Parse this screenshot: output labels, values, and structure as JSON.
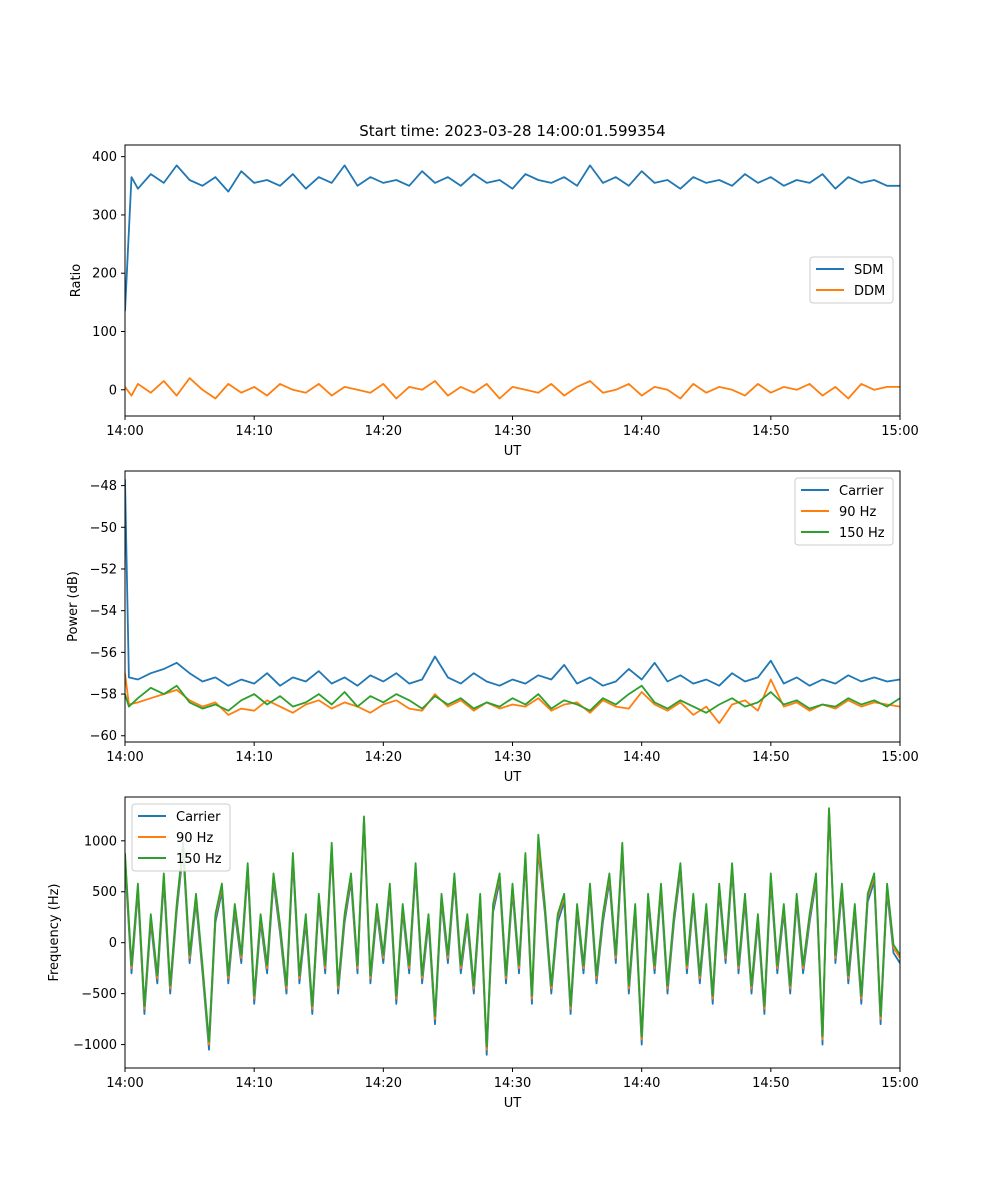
{
  "figure": {
    "title": "Start time: 2023-03-28 14:00:01.599354"
  },
  "chart_data": [
    {
      "type": "line",
      "title": "Start time: 2023-03-28 14:00:01.599354",
      "xlabel": "UT",
      "ylabel": "Ratio",
      "x_range": [
        "14:00",
        "15:00"
      ],
      "xticks": [
        "14:00",
        "14:10",
        "14:20",
        "14:30",
        "14:40",
        "14:50",
        "15:00"
      ],
      "yticks": [
        0,
        100,
        200,
        300,
        400
      ],
      "ylim": [
        -45,
        420
      ],
      "legend_position": "center-right",
      "x_minutes": [
        0,
        0.5,
        1,
        2,
        3,
        4,
        5,
        6,
        7,
        8,
        9,
        10,
        11,
        12,
        13,
        14,
        15,
        16,
        17,
        18,
        19,
        20,
        21,
        22,
        23,
        24,
        25,
        26,
        27,
        28,
        29,
        30,
        31,
        32,
        33,
        34,
        35,
        36,
        37,
        38,
        39,
        40,
        41,
        42,
        43,
        44,
        45,
        46,
        47,
        48,
        49,
        50,
        51,
        52,
        53,
        54,
        55,
        56,
        57,
        58,
        59,
        60
      ],
      "series": [
        {
          "name": "SDM",
          "color": "#1f77b4",
          "values": [
            135,
            365,
            345,
            370,
            355,
            385,
            360,
            350,
            365,
            340,
            375,
            355,
            360,
            350,
            370,
            345,
            365,
            355,
            385,
            350,
            365,
            355,
            360,
            350,
            375,
            355,
            365,
            350,
            370,
            355,
            360,
            345,
            370,
            360,
            355,
            365,
            350,
            385,
            355,
            365,
            350,
            375,
            355,
            360,
            345,
            365,
            355,
            360,
            350,
            370,
            355,
            365,
            350,
            360,
            355,
            370,
            345,
            365,
            355,
            360,
            350,
            350
          ]
        },
        {
          "name": "DDM",
          "color": "#ff7f0e",
          "values": [
            5,
            -10,
            10,
            -5,
            15,
            -10,
            20,
            0,
            -15,
            10,
            -5,
            5,
            -10,
            10,
            0,
            -5,
            10,
            -10,
            5,
            0,
            -5,
            10,
            -15,
            5,
            0,
            15,
            -10,
            5,
            -5,
            10,
            -15,
            5,
            0,
            -5,
            10,
            -10,
            5,
            15,
            -5,
            0,
            10,
            -10,
            5,
            0,
            -15,
            10,
            -5,
            5,
            0,
            -10,
            10,
            -5,
            5,
            0,
            10,
            -10,
            5,
            -15,
            10,
            0,
            5,
            5
          ]
        }
      ]
    },
    {
      "type": "line",
      "xlabel": "UT",
      "ylabel": "Power (dB)",
      "x_range": [
        "14:00",
        "15:00"
      ],
      "xticks": [
        "14:00",
        "14:10",
        "14:20",
        "14:30",
        "14:40",
        "14:50",
        "15:00"
      ],
      "yticks": [
        -48,
        -50,
        -52,
        -54,
        -56,
        -58,
        -60
      ],
      "ylim": [
        -60.3,
        -47.3
      ],
      "legend_position": "top-right",
      "x_minutes": [
        0,
        0.3,
        1,
        2,
        3,
        4,
        5,
        6,
        7,
        8,
        9,
        10,
        11,
        12,
        13,
        14,
        15,
        16,
        17,
        18,
        19,
        20,
        21,
        22,
        23,
        24,
        25,
        26,
        27,
        28,
        29,
        30,
        31,
        32,
        33,
        34,
        35,
        36,
        37,
        38,
        39,
        40,
        41,
        42,
        43,
        44,
        45,
        46,
        47,
        48,
        49,
        50,
        51,
        52,
        53,
        54,
        55,
        56,
        57,
        58,
        59,
        60
      ],
      "series": [
        {
          "name": "Carrier",
          "color": "#1f77b4",
          "values": [
            -47.7,
            -57.2,
            -57.3,
            -57.0,
            -56.8,
            -56.5,
            -57.0,
            -57.4,
            -57.2,
            -57.6,
            -57.3,
            -57.5,
            -57.0,
            -57.6,
            -57.2,
            -57.4,
            -56.9,
            -57.5,
            -57.2,
            -57.6,
            -57.1,
            -57.4,
            -57.0,
            -57.5,
            -57.3,
            -56.2,
            -57.2,
            -57.5,
            -57.0,
            -57.4,
            -57.6,
            -57.3,
            -57.5,
            -57.1,
            -57.3,
            -56.6,
            -57.5,
            -57.2,
            -57.6,
            -57.4,
            -56.8,
            -57.3,
            -56.5,
            -57.4,
            -57.1,
            -57.5,
            -57.3,
            -57.6,
            -57.0,
            -57.4,
            -57.2,
            -56.4,
            -57.5,
            -57.2,
            -57.6,
            -57.3,
            -57.5,
            -57.1,
            -57.4,
            -57.2,
            -57.4,
            -57.3
          ]
        },
        {
          "name": "90 Hz",
          "color": "#ff7f0e",
          "values": [
            -57.0,
            -58.5,
            -58.4,
            -58.2,
            -58.0,
            -57.8,
            -58.3,
            -58.6,
            -58.4,
            -59.0,
            -58.7,
            -58.8,
            -58.3,
            -58.6,
            -58.9,
            -58.5,
            -58.3,
            -58.7,
            -58.4,
            -58.6,
            -58.9,
            -58.5,
            -58.3,
            -58.7,
            -58.8,
            -58.0,
            -58.6,
            -58.3,
            -58.8,
            -58.4,
            -58.7,
            -58.5,
            -58.6,
            -58.2,
            -58.8,
            -58.5,
            -58.4,
            -58.9,
            -58.3,
            -58.6,
            -58.7,
            -57.9,
            -58.5,
            -58.8,
            -58.4,
            -59.0,
            -58.6,
            -59.4,
            -58.5,
            -58.3,
            -58.8,
            -57.3,
            -58.6,
            -58.4,
            -58.8,
            -58.5,
            -58.7,
            -58.3,
            -58.6,
            -58.4,
            -58.5,
            -58.6
          ]
        },
        {
          "name": "150 Hz",
          "color": "#2ca02c",
          "values": [
            -58.0,
            -58.6,
            -58.2,
            -57.7,
            -58.0,
            -57.6,
            -58.4,
            -58.7,
            -58.5,
            -58.8,
            -58.3,
            -58.0,
            -58.5,
            -58.1,
            -58.6,
            -58.4,
            -58.0,
            -58.5,
            -57.9,
            -58.6,
            -58.1,
            -58.4,
            -58.0,
            -58.3,
            -58.7,
            -58.1,
            -58.5,
            -58.2,
            -58.7,
            -58.4,
            -58.6,
            -58.2,
            -58.5,
            -58.0,
            -58.7,
            -58.3,
            -58.5,
            -58.8,
            -58.2,
            -58.5,
            -58.0,
            -57.6,
            -58.4,
            -58.7,
            -58.3,
            -58.6,
            -58.9,
            -58.5,
            -58.2,
            -58.6,
            -58.4,
            -57.9,
            -58.5,
            -58.3,
            -58.7,
            -58.5,
            -58.6,
            -58.2,
            -58.5,
            -58.3,
            -58.6,
            -58.2
          ]
        }
      ]
    },
    {
      "type": "line",
      "xlabel": "UT",
      "ylabel": "Frequency (Hz)",
      "x_range": [
        "14:00",
        "15:00"
      ],
      "xticks": [
        "14:00",
        "14:10",
        "14:20",
        "14:30",
        "14:40",
        "14:50",
        "15:00"
      ],
      "yticks": [
        1000,
        500,
        0,
        -500,
        -1000
      ],
      "ylim": [
        -1230,
        1430
      ],
      "legend_position": "top-left",
      "x_minutes": [
        0,
        0.5,
        1,
        1.5,
        2,
        2.5,
        3,
        3.5,
        4,
        4.5,
        5,
        5.5,
        6,
        6.5,
        7,
        7.5,
        8,
        8.5,
        9,
        9.5,
        10,
        10.5,
        11,
        11.5,
        12,
        12.5,
        13,
        13.5,
        14,
        14.5,
        15,
        15.5,
        16,
        16.5,
        17,
        17.5,
        18,
        18.5,
        19,
        19.5,
        20,
        20.5,
        21,
        21.5,
        22,
        22.5,
        23,
        23.5,
        24,
        24.5,
        25,
        25.5,
        26,
        26.5,
        27,
        27.5,
        28,
        28.5,
        29,
        29.5,
        30,
        30.5,
        31,
        31.5,
        32,
        32.5,
        33,
        33.5,
        34,
        34.5,
        35,
        35.5,
        36,
        36.5,
        37,
        37.5,
        38,
        38.5,
        39,
        39.5,
        40,
        40.5,
        41,
        41.5,
        42,
        42.5,
        43,
        43.5,
        44,
        44.5,
        45,
        45.5,
        46,
        46.5,
        47,
        47.5,
        48,
        48.5,
        49,
        49.5,
        50,
        50.5,
        51,
        51.5,
        52,
        52.5,
        53,
        53.5,
        54,
        54.5,
        55,
        55.5,
        56,
        56.5,
        57,
        57.5,
        58,
        58.5,
        59,
        59.5,
        60
      ],
      "series": [
        {
          "name": "Carrier",
          "color": "#1f77b4",
          "values": [
            800,
            -300,
            500,
            -700,
            200,
            -400,
            600,
            -500,
            300,
            900,
            -200,
            400,
            -300,
            -1050,
            200,
            500,
            -400,
            300,
            -200,
            700,
            -600,
            200,
            -300,
            600,
            100,
            -500,
            800,
            -400,
            200,
            -700,
            400,
            -300,
            900,
            -500,
            200,
            600,
            -300,
            1200,
            -400,
            300,
            -200,
            500,
            -600,
            300,
            -300,
            700,
            -400,
            200,
            -800,
            400,
            -200,
            600,
            -300,
            200,
            -500,
            400,
            -1100,
            300,
            600,
            -400,
            500,
            -300,
            800,
            -600,
            900,
            300,
            -500,
            200,
            400,
            -700,
            300,
            -300,
            500,
            -400,
            200,
            600,
            -200,
            900,
            -500,
            300,
            -1000,
            400,
            -300,
            500,
            -500,
            200,
            700,
            -300,
            400,
            -400,
            300,
            -600,
            500,
            -200,
            700,
            -300,
            400,
            -500,
            200,
            -700,
            600,
            -300,
            300,
            -500,
            400,
            -300,
            200,
            600,
            -1000,
            1300,
            -200,
            500,
            -400,
            300,
            -600,
            400,
            600,
            -800,
            500,
            -100,
            -200
          ]
        },
        {
          "name": "90 Hz",
          "color": "#ff7f0e",
          "values": [
            850,
            -250,
            550,
            -650,
            250,
            -350,
            650,
            -450,
            350,
            950,
            -150,
            450,
            -250,
            -1000,
            250,
            550,
            -350,
            350,
            -150,
            750,
            -550,
            250,
            -250,
            650,
            150,
            -450,
            850,
            -350,
            250,
            -650,
            450,
            -250,
            950,
            -450,
            250,
            650,
            -250,
            1230,
            -350,
            350,
            -150,
            550,
            -550,
            350,
            -250,
            750,
            -350,
            250,
            -750,
            450,
            -150,
            650,
            -250,
            250,
            -450,
            450,
            -1050,
            350,
            650,
            -350,
            550,
            -250,
            850,
            -550,
            950,
            350,
            -450,
            250,
            450,
            -650,
            350,
            -250,
            550,
            -350,
            250,
            650,
            -150,
            950,
            -450,
            350,
            -950,
            450,
            -250,
            550,
            -450,
            250,
            750,
            -250,
            450,
            -350,
            350,
            -550,
            550,
            -150,
            750,
            -250,
            450,
            -450,
            250,
            -650,
            650,
            -250,
            350,
            -450,
            450,
            -250,
            250,
            650,
            -950,
            1310,
            -150,
            550,
            -350,
            350,
            -550,
            450,
            650,
            -750,
            550,
            -50,
            -150
          ]
        },
        {
          "name": "150 Hz",
          "color": "#2ca02c",
          "values": [
            880,
            -220,
            580,
            -620,
            280,
            -320,
            680,
            -420,
            380,
            980,
            -120,
            480,
            -220,
            -970,
            280,
            580,
            -320,
            380,
            -120,
            780,
            -520,
            280,
            -220,
            680,
            180,
            -420,
            880,
            -320,
            280,
            -620,
            480,
            -220,
            980,
            -420,
            280,
            680,
            -220,
            1240,
            -320,
            380,
            -120,
            580,
            -520,
            380,
            -220,
            780,
            -320,
            280,
            -720,
            480,
            -120,
            680,
            -220,
            280,
            -420,
            480,
            -1020,
            380,
            680,
            -320,
            580,
            -220,
            880,
            -520,
            1060,
            380,
            -420,
            280,
            480,
            -620,
            380,
            -220,
            580,
            -320,
            280,
            680,
            -120,
            980,
            -420,
            380,
            -920,
            480,
            -220,
            580,
            -420,
            280,
            780,
            -220,
            480,
            -320,
            380,
            -520,
            580,
            -120,
            780,
            -220,
            480,
            -420,
            280,
            -620,
            680,
            -220,
            380,
            -420,
            480,
            -220,
            280,
            680,
            -920,
            1320,
            -120,
            580,
            -320,
            380,
            -520,
            480,
            680,
            -720,
            580,
            -20,
            -120
          ]
        }
      ]
    }
  ]
}
